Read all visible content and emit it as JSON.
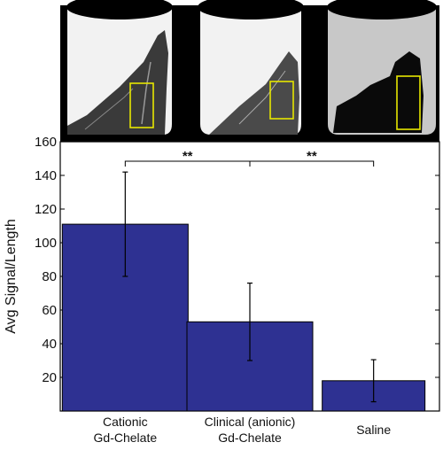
{
  "chart_data": {
    "type": "bar",
    "categories": [
      [
        "Cationic",
        "Gd-Chelate"
      ],
      [
        "Clinical (anionic)",
        "Gd-Chelate"
      ],
      [
        "Saline"
      ]
    ],
    "values": [
      111,
      53,
      18
    ],
    "error": [
      31,
      23,
      12.5
    ],
    "ylabel": "Avg Signal/Length",
    "xlabel": "",
    "ylim": [
      0,
      160
    ],
    "yticks": [
      20,
      40,
      60,
      80,
      100,
      120,
      140,
      160
    ],
    "bar_color": "#2e3192",
    "significance": [
      {
        "from": 0,
        "to": 1,
        "label": "**"
      },
      {
        "from": 1,
        "to": 2,
        "label": "**"
      }
    ],
    "grid": false,
    "legend": "none"
  },
  "images": {
    "count": 3,
    "description_icon": "mri-tissue-panel"
  }
}
